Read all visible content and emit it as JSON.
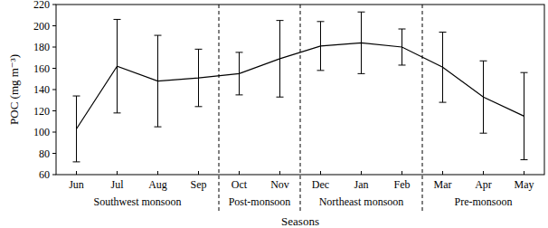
{
  "chart_data": {
    "type": "line",
    "y_label": "POC (mg m⁻³)",
    "x_label": "Seasons",
    "categories": [
      "Jun",
      "Jul",
      "Aug",
      "Sep",
      "Oct",
      "Nov",
      "Dec",
      "Jan",
      "Feb",
      "Mar",
      "Apr",
      "May"
    ],
    "series": [
      {
        "color": "#000000",
        "marker": "none",
        "line_style": "solid",
        "values": [
          103,
          162,
          148,
          151,
          155,
          169,
          181,
          184,
          180,
          161,
          133,
          115
        ],
        "errors": [
          31,
          44,
          43,
          27,
          20,
          36,
          23,
          29,
          17,
          33,
          34,
          41
        ]
      }
    ],
    "seasons": [
      {
        "label": "Southwest monsoon",
        "categories": [
          "Jun",
          "Jul",
          "Aug",
          "Sep"
        ]
      },
      {
        "label": "Post-monsoon",
        "categories": [
          "Oct",
          "Nov"
        ]
      },
      {
        "label": "Northeast monsoon",
        "categories": [
          "Dec",
          "Jan",
          "Feb"
        ]
      },
      {
        "label": "Pre-monsoon",
        "categories": [
          "Mar",
          "Apr",
          "May"
        ]
      }
    ],
    "ylim": [
      60,
      220
    ],
    "yticks": [
      60,
      80,
      100,
      120,
      140,
      160,
      180,
      200,
      220
    ],
    "grid": false
  }
}
